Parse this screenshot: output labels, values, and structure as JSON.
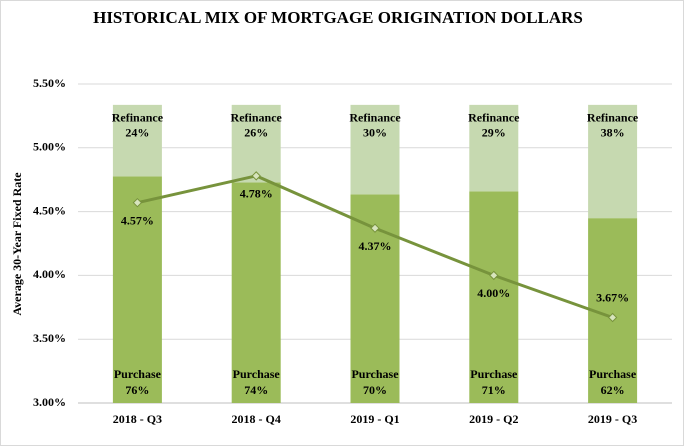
{
  "chart_data": {
    "type": "bar",
    "title": "HISTORICAL MIX OF MORTGAGE ORIGINATION DOLLARS",
    "y_label": "Average 30-Year Fixed Rate",
    "categories": [
      "2018 - Q3",
      "2018 - Q4",
      "2019 - Q1",
      "2019 - Q2",
      "2019 - Q3"
    ],
    "stacked": true,
    "series": [
      {
        "name": "Purchase",
        "color": "#9bbb59",
        "axis": "y2",
        "values": [
          76,
          74,
          70,
          71,
          62
        ],
        "value_labels": [
          "76%",
          "74%",
          "70%",
          "71%",
          "62%"
        ]
      },
      {
        "name": "Refinance",
        "color": "#c6d9b0",
        "axis": "y2",
        "values": [
          24,
          26,
          30,
          29,
          38
        ],
        "value_labels": [
          "24%",
          "26%",
          "30%",
          "29%",
          "38%"
        ]
      }
    ],
    "line": {
      "type": "line",
      "color": "#77933c",
      "values": [
        4.57,
        4.78,
        4.37,
        4.0,
        3.67
      ],
      "value_labels": [
        "4.57%",
        "4.78%",
        "4.37%",
        "4.00%",
        "3.67%"
      ]
    },
    "ylim": [
      3.0,
      5.5
    ],
    "yticks": [
      {
        "value": 3.0,
        "label": "3.00%"
      },
      {
        "value": 3.5,
        "label": "3.50%"
      },
      {
        "value": 4.0,
        "label": "4.00%"
      },
      {
        "value": 4.5,
        "label": "4.50%"
      },
      {
        "value": 5.0,
        "label": "5.00%"
      },
      {
        "value": 5.5,
        "label": "5.50%"
      }
    ],
    "y2lim": [
      0,
      107
    ],
    "grid": true
  }
}
